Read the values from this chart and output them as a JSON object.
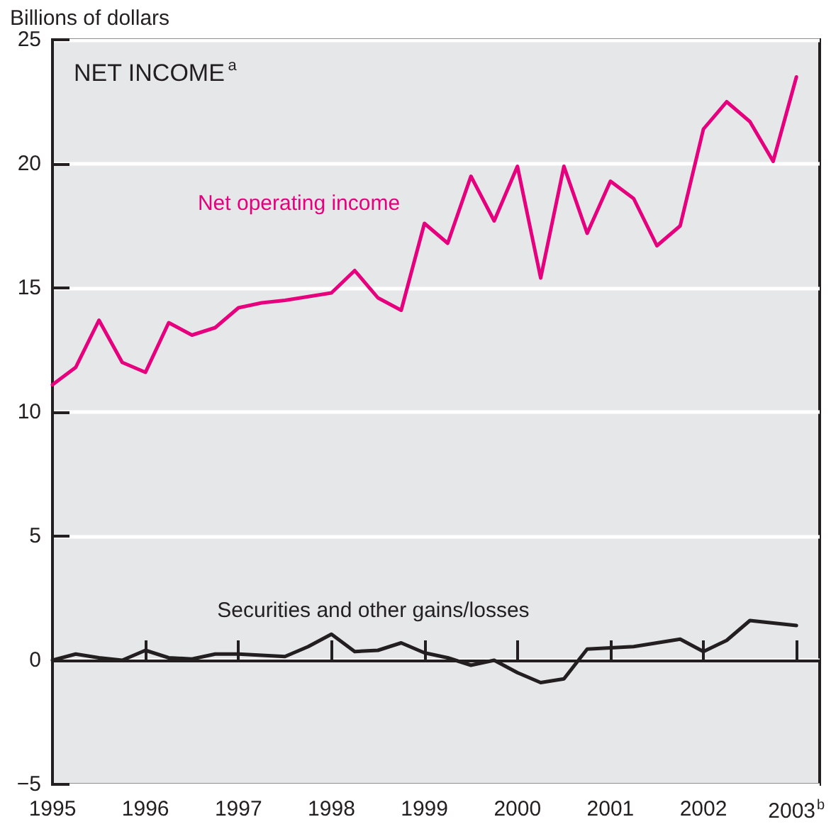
{
  "chart_data": {
    "type": "line",
    "title": "NET INCOME$^{a}$",
    "ylabel": "Billions of dollars",
    "x": [
      1995,
      1995.25,
      1995.5,
      1995.75,
      1996,
      1996.25,
      1996.5,
      1996.75,
      1997,
      1997.25,
      1997.5,
      1997.75,
      1998,
      1998.25,
      1998.5,
      1998.75,
      1999,
      1999.25,
      1999.5,
      1999.75,
      2000,
      2000.25,
      2000.5,
      2000.75,
      2001,
      2001.25,
      2001.5,
      2001.75,
      2002,
      2002.25,
      2002.5,
      2002.75,
      2003
    ],
    "series": [
      {
        "name": "Net operating income",
        "color": "#e6007e",
        "values": [
          11.1,
          11.8,
          13.7,
          12.0,
          11.6,
          13.6,
          13.1,
          13.4,
          14.2,
          14.4,
          14.5,
          14.65,
          14.8,
          15.7,
          14.6,
          14.1,
          17.6,
          16.8,
          19.5,
          17.7,
          19.9,
          15.4,
          19.9,
          17.2,
          19.3,
          18.6,
          16.7,
          17.5,
          21.4,
          22.5,
          21.7,
          20.1,
          23.5
        ]
      },
      {
        "name": "Securities and other gains/losses",
        "color": "#231f20",
        "values": [
          0.0,
          0.25,
          0.1,
          0.0,
          0.4,
          0.1,
          0.05,
          0.25,
          0.25,
          0.2,
          0.15,
          0.55,
          1.05,
          0.35,
          0.4,
          0.7,
          0.3,
          0.1,
          -0.2,
          0.0,
          -0.5,
          -0.9,
          -0.75,
          0.45,
          0.5,
          0.55,
          0.7,
          0.85,
          0.35,
          0.8,
          1.6,
          1.5,
          1.4
        ]
      }
    ],
    "xlim": [
      1995,
      2003.25
    ],
    "xticks": [
      1995,
      1996,
      1997,
      1998,
      1999,
      2000,
      2001,
      2002,
      {
        "value": 2003,
        "label": "2003$^{b}$"
      }
    ],
    "ylim": [
      -5,
      25
    ],
    "yticks": [
      -5,
      0,
      5,
      10,
      15,
      20,
      25
    ],
    "grid": "y",
    "legend": false,
    "marker": "none",
    "line_style": "solid"
  }
}
